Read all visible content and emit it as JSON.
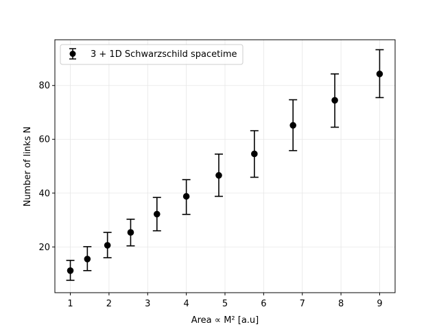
{
  "chart_data": {
    "type": "scatter",
    "xlabel": "Area ∝ M² [a.u]",
    "ylabel": "Number of links N",
    "xlim": [
      0.6,
      9.4
    ],
    "ylim": [
      3,
      97
    ],
    "xticks": [
      1,
      2,
      3,
      4,
      5,
      6,
      7,
      8,
      9
    ],
    "yticks": [
      20,
      40,
      60,
      80
    ],
    "grid": true,
    "legend_position": "top-left",
    "series": [
      {
        "name": "3 + 1D Schwarzschild spacetime",
        "color": "#000000",
        "marker": "circle",
        "points": [
          {
            "x": 1.0,
            "y": 11.2,
            "err_low": 7.6,
            "err_high": 15.0
          },
          {
            "x": 1.44,
            "y": 15.5,
            "err_low": 11.2,
            "err_high": 20.1
          },
          {
            "x": 1.96,
            "y": 20.6,
            "err_low": 16.0,
            "err_high": 25.4
          },
          {
            "x": 2.56,
            "y": 25.4,
            "err_low": 20.4,
            "err_high": 30.3
          },
          {
            "x": 3.24,
            "y": 32.2,
            "err_low": 26.0,
            "err_high": 38.4
          },
          {
            "x": 4.0,
            "y": 38.8,
            "err_low": 32.1,
            "err_high": 45.0
          },
          {
            "x": 4.84,
            "y": 46.6,
            "err_low": 38.8,
            "err_high": 54.5
          },
          {
            "x": 5.76,
            "y": 54.6,
            "err_low": 45.9,
            "err_high": 63.2
          },
          {
            "x": 6.76,
            "y": 65.2,
            "err_low": 55.8,
            "err_high": 74.7
          },
          {
            "x": 7.84,
            "y": 74.5,
            "err_low": 64.5,
            "err_high": 84.3
          },
          {
            "x": 9.0,
            "y": 84.3,
            "err_low": 75.5,
            "err_high": 93.3
          }
        ]
      }
    ]
  }
}
